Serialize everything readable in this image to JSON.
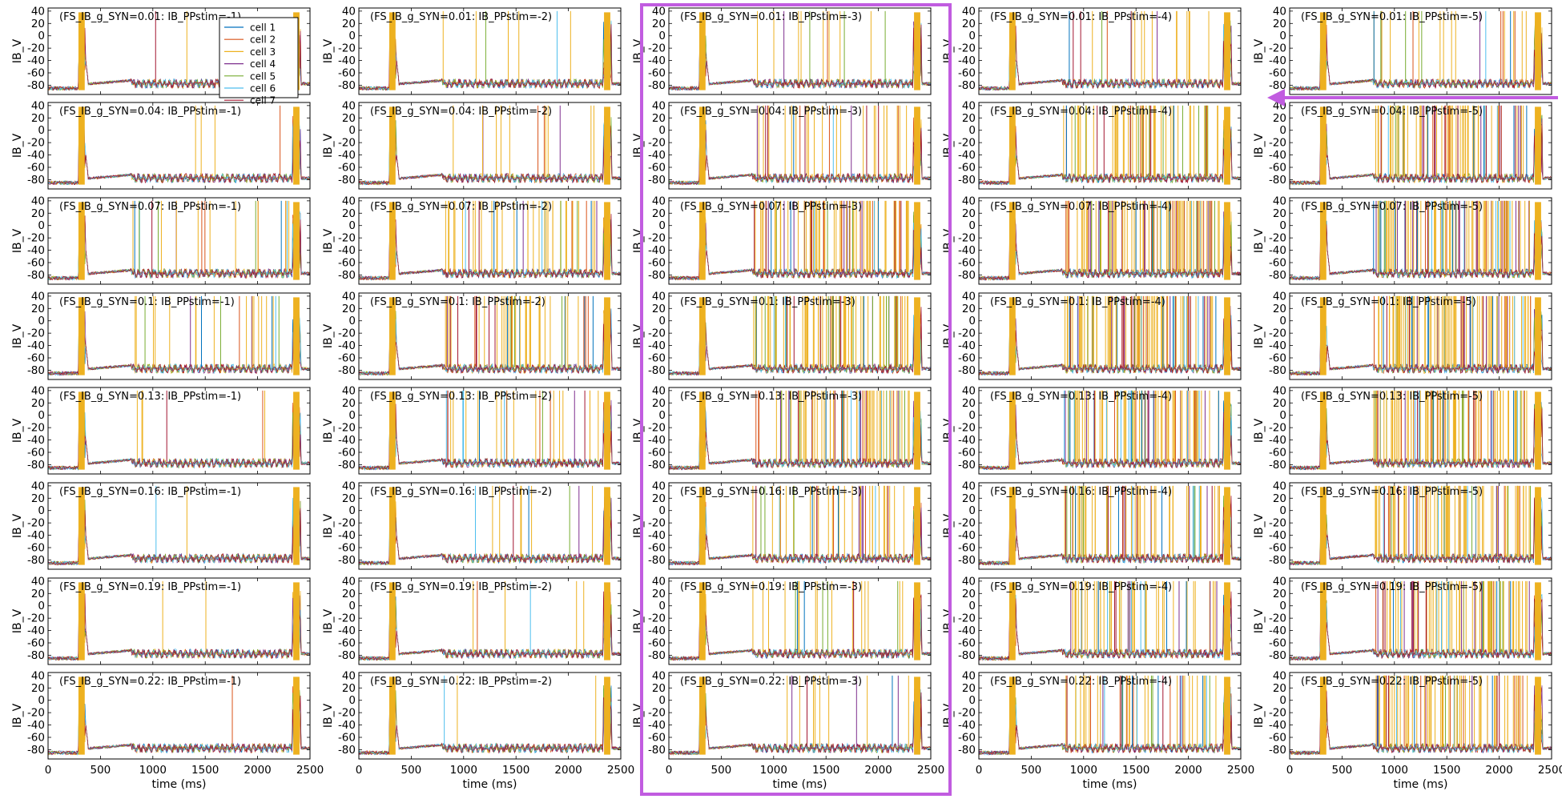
{
  "chart_data": {
    "type": "line",
    "title_format": "(FS_IB_g_SYN={g}: IB_PPstim={p})",
    "g_syn_rows": [
      "0.01",
      "0.04",
      "0.07",
      "0.1",
      "0.13",
      "0.16",
      "0.19",
      "0.22"
    ],
    "ppstim_cols": [
      "-1",
      "-2",
      "-3",
      "-4",
      "-5"
    ],
    "xlabel": "time (ms)",
    "ylabel": "IB_V",
    "xlim": [
      0,
      2500
    ],
    "ylim": [
      -95,
      45
    ],
    "x_ticks": [
      0,
      500,
      1000,
      1500,
      2000,
      2500
    ],
    "y_ticks": [
      40,
      20,
      0,
      -20,
      -40,
      -60,
      -80
    ],
    "grid": false,
    "legend_position": "top (first panel)",
    "series": [
      {
        "name": "cell 1",
        "color": "#0072bd"
      },
      {
        "name": "cell 2",
        "color": "#d95319"
      },
      {
        "name": "cell 3",
        "color": "#edb120"
      },
      {
        "name": "cell 4",
        "color": "#7e2f8e"
      },
      {
        "name": "cell 5",
        "color": "#77ac30"
      },
      {
        "name": "cell 6",
        "color": "#4dbeee"
      },
      {
        "name": "cell 7",
        "color": "#a2142f"
      }
    ],
    "waveform": {
      "burst_1_ms": [
        290,
        350
      ],
      "burst_2_ms": [
        2340,
        2400
      ],
      "baseline_mV": [
        -86,
        -70
      ],
      "sustained_spiking_ms": [
        800,
        2300
      ],
      "spike_density": [
        [
          0.02,
          0.06,
          0.12,
          0.18,
          0.22
        ],
        [
          0.04,
          0.12,
          0.3,
          0.55,
          0.75
        ],
        [
          0.2,
          0.4,
          0.75,
          0.9,
          0.95
        ],
        [
          0.22,
          0.45,
          0.8,
          0.95,
          0.95
        ],
        [
          0.05,
          0.25,
          0.65,
          0.8,
          0.9
        ],
        [
          0.02,
          0.1,
          0.4,
          0.6,
          0.8
        ],
        [
          0.02,
          0.05,
          0.2,
          0.5,
          0.75
        ],
        [
          0.01,
          0.03,
          0.12,
          0.45,
          0.7
        ]
      ]
    }
  },
  "highlights": {
    "column_box_color": "#c15ce0",
    "arrow_color": "#c15ce0"
  }
}
